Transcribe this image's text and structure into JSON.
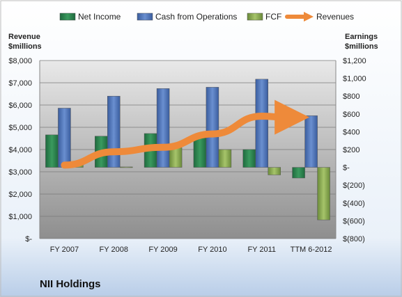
{
  "chart_data": {
    "type": "bar",
    "title": "NII Holdings",
    "categories": [
      "FY 2007",
      "FY 2008",
      "FY 2009",
      "FY 2010",
      "FY 2011",
      "TTM 6-2012"
    ],
    "left_axis": {
      "label_line1": "Revenue",
      "label_line2": "$millions",
      "ylim": [
        0,
        8000
      ],
      "ticks": [
        0,
        1000,
        2000,
        3000,
        4000,
        5000,
        6000,
        7000,
        8000
      ],
      "tick_labels": [
        "$-",
        "$1,000",
        "$2,000",
        "$3,000",
        "$4,000",
        "$5,000",
        "$6,000",
        "$7,000",
        "$8,000"
      ]
    },
    "right_axis": {
      "label_line1": "Earnings",
      "label_line2": "$millions",
      "ylim": [
        -800,
        1200
      ],
      "ticks": [
        -800,
        -600,
        -400,
        -200,
        0,
        200,
        400,
        600,
        800,
        1000,
        1200
      ],
      "tick_labels": [
        "$(800)",
        "$(600)",
        "$(400)",
        "$(200)",
        "$-",
        "$200",
        "$400",
        "$600",
        "$800",
        "$1,000",
        "$1,200"
      ]
    },
    "series": [
      {
        "name": "Net Income",
        "axis": "right",
        "color": "#2e7d4f",
        "values": [
          365,
          350,
          380,
          350,
          200,
          -120
        ]
      },
      {
        "name": "Cash from Operations",
        "axis": "right",
        "color": "#4a6fb5",
        "values": [
          665,
          800,
          885,
          900,
          990,
          580
        ]
      },
      {
        "name": "FCF",
        "axis": "right",
        "color": "#7fa04a",
        "values": [
          30,
          5,
          220,
          200,
          -85,
          -590
        ]
      },
      {
        "name": "Revenues",
        "axis": "left",
        "color": "#ee8a3a",
        "type": "line",
        "values": [
          3300,
          3900,
          4100,
          4700,
          5500,
          5450
        ]
      }
    ],
    "legend_position": "top",
    "grid": true
  }
}
